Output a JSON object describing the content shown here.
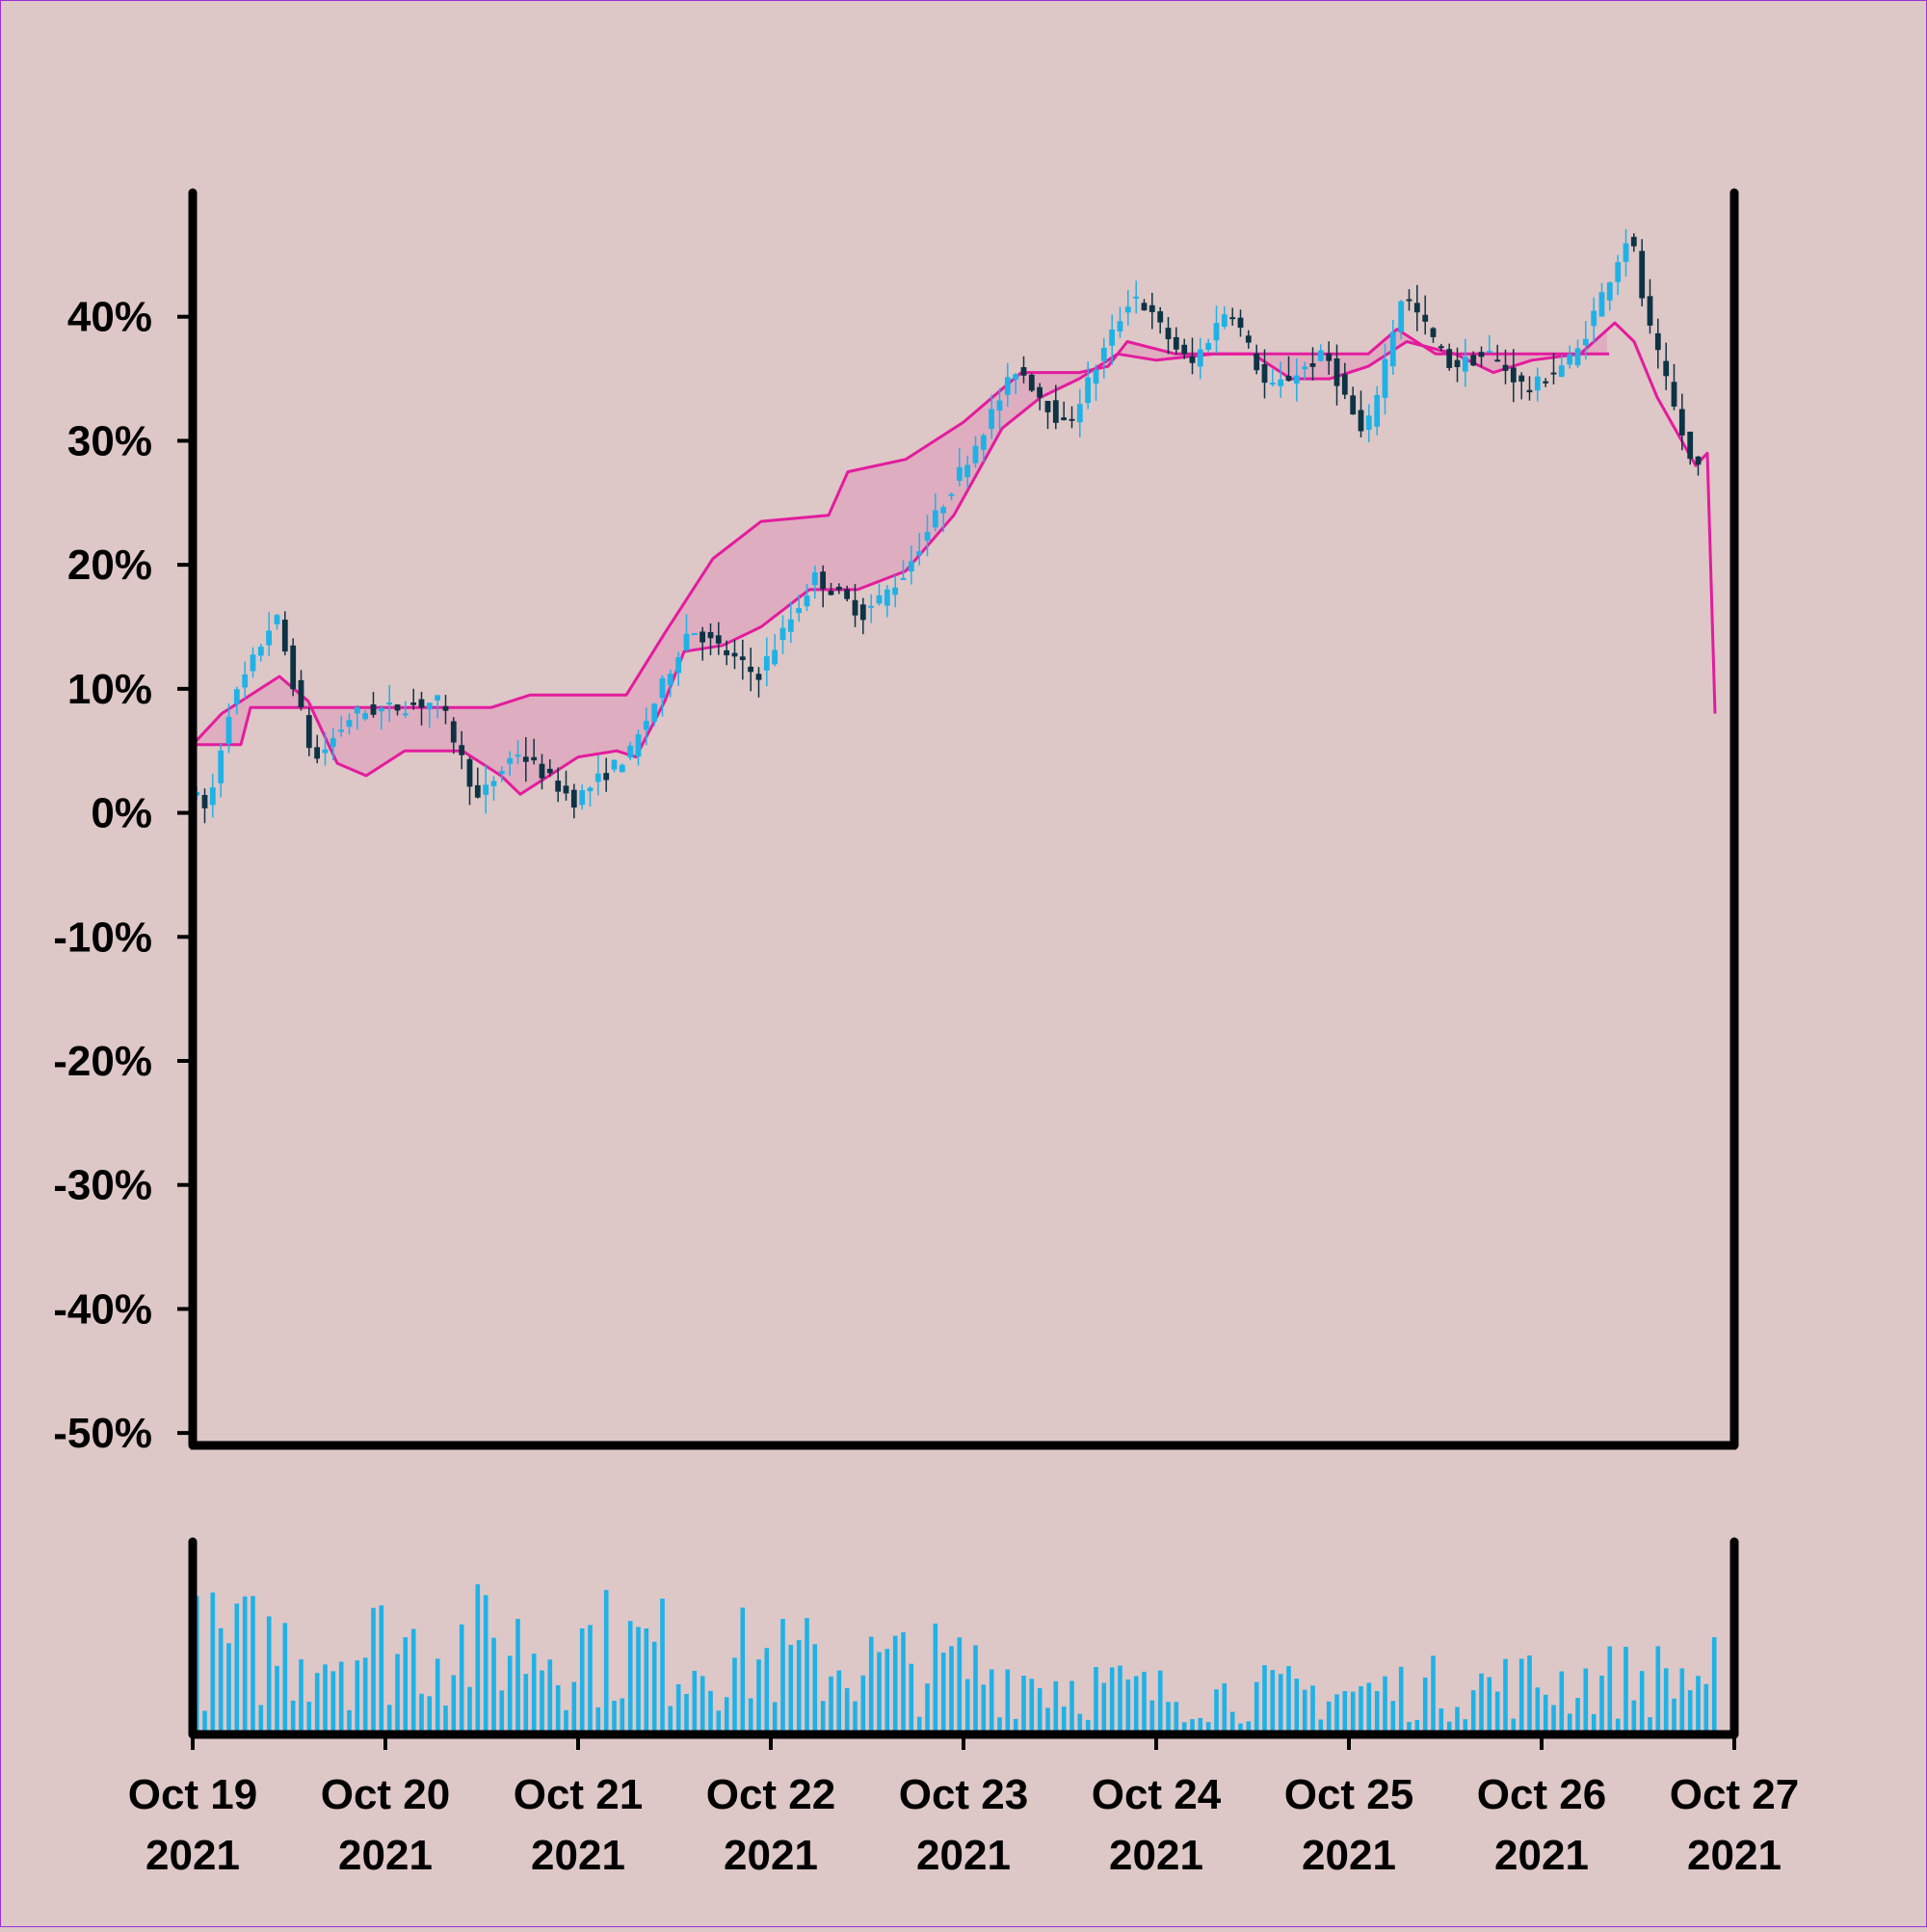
{
  "chart_data": {
    "type": "candlestick",
    "title": "",
    "xlabel": "",
    "ylabel": "",
    "y_format": "percent",
    "ylim": [
      -51,
      50
    ],
    "y_ticks": [
      40,
      30,
      20,
      10,
      0,
      -10,
      -20,
      -30,
      -40,
      -50
    ],
    "y_tick_labels": [
      "40%",
      "30%",
      "20%",
      "10%",
      "0%",
      "-10%",
      "-20%",
      "-30%",
      "-40%",
      "-50%"
    ],
    "x_ticks": [
      {
        "line1": "Oct 19",
        "line2": "2021"
      },
      {
        "line1": "Oct 20",
        "line2": "2021"
      },
      {
        "line1": "Oct 21",
        "line2": "2021"
      },
      {
        "line1": "Oct 22",
        "line2": "2021"
      },
      {
        "line1": "Oct 23",
        "line2": "2021"
      },
      {
        "line1": "Oct 24",
        "line2": "2021"
      },
      {
        "line1": "Oct 25",
        "line2": "2021"
      },
      {
        "line1": "Oct 26",
        "line2": "2021"
      },
      {
        "line1": "Oct 27",
        "line2": "2021"
      }
    ],
    "x_range_days": [
      0,
      8
    ],
    "grid": false,
    "legend": "none",
    "colors": {
      "background": "#dec7c7",
      "up": "#1fb2e6",
      "down": "#0d3344",
      "band_line": "#e31c9e",
      "band_fill": "#e06cae",
      "axis": "#000000",
      "volume": "#1fb2e6"
    },
    "price_path_keypoints": [
      [
        0.0,
        2
      ],
      [
        0.1,
        0
      ],
      [
        0.2,
        8
      ],
      [
        0.45,
        16
      ],
      [
        0.65,
        4
      ],
      [
        0.85,
        8
      ],
      [
        1.3,
        9
      ],
      [
        1.5,
        1
      ],
      [
        1.7,
        5
      ],
      [
        2.0,
        1
      ],
      [
        2.3,
        5
      ],
      [
        2.6,
        15
      ],
      [
        2.95,
        11
      ],
      [
        3.25,
        19
      ],
      [
        3.5,
        16
      ],
      [
        3.7,
        19
      ],
      [
        3.95,
        26
      ],
      [
        4.3,
        36
      ],
      [
        4.55,
        31
      ],
      [
        4.9,
        42
      ],
      [
        5.2,
        36
      ],
      [
        5.4,
        41
      ],
      [
        5.6,
        34
      ],
      [
        5.9,
        37
      ],
      [
        6.1,
        30
      ],
      [
        6.3,
        42
      ],
      [
        6.55,
        36
      ],
      [
        6.75,
        37
      ],
      [
        6.95,
        34
      ],
      [
        7.2,
        37
      ],
      [
        7.48,
        47
      ],
      [
        7.56,
        40
      ],
      [
        7.8,
        28
      ]
    ],
    "band_upper_keypoints": [
      [
        0.0,
        5.5
      ],
      [
        0.25,
        5.5
      ],
      [
        0.3,
        8.5
      ],
      [
        0.5,
        8.5
      ],
      [
        1.55,
        8.5
      ],
      [
        1.75,
        9.5
      ],
      [
        2.25,
        9.5
      ],
      [
        2.45,
        14.5
      ],
      [
        2.7,
        20.5
      ],
      [
        2.95,
        23.5
      ],
      [
        3.3,
        24
      ],
      [
        3.4,
        27.5
      ],
      [
        3.7,
        28.5
      ],
      [
        4.0,
        31.5
      ],
      [
        4.3,
        35.5
      ],
      [
        4.6,
        35.5
      ],
      [
        4.75,
        36
      ],
      [
        4.85,
        38
      ],
      [
        5.1,
        37
      ],
      [
        5.5,
        37
      ],
      [
        5.75,
        37
      ],
      [
        6.1,
        37
      ],
      [
        6.25,
        39
      ],
      [
        6.45,
        37
      ],
      [
        6.7,
        37
      ],
      [
        7.0,
        37
      ],
      [
        7.35,
        37
      ]
    ],
    "band_lower_keypoints": [
      [
        0.0,
        5.5
      ],
      [
        0.15,
        8
      ],
      [
        0.3,
        9.5
      ],
      [
        0.45,
        11
      ],
      [
        0.6,
        9
      ],
      [
        0.75,
        4
      ],
      [
        0.9,
        3
      ],
      [
        1.1,
        5
      ],
      [
        1.4,
        5
      ],
      [
        1.6,
        3
      ],
      [
        1.7,
        1.5
      ],
      [
        1.85,
        3
      ],
      [
        2.0,
        4.5
      ],
      [
        2.2,
        5
      ],
      [
        2.3,
        4.5
      ],
      [
        2.45,
        9
      ],
      [
        2.55,
        13
      ],
      [
        2.75,
        13.5
      ],
      [
        2.95,
        15
      ],
      [
        3.2,
        18
      ],
      [
        3.45,
        18
      ],
      [
        3.7,
        19.5
      ],
      [
        3.95,
        24
      ],
      [
        4.2,
        31
      ],
      [
        4.4,
        33.5
      ],
      [
        4.6,
        35
      ],
      [
        4.8,
        37
      ],
      [
        5.0,
        36.5
      ],
      [
        5.3,
        37
      ],
      [
        5.5,
        37
      ],
      [
        5.7,
        35
      ],
      [
        5.9,
        35
      ],
      [
        6.1,
        36
      ],
      [
        6.3,
        38
      ],
      [
        6.55,
        37
      ],
      [
        6.75,
        35.5
      ],
      [
        6.95,
        36.5
      ],
      [
        7.2,
        37
      ],
      [
        7.38,
        39.5
      ],
      [
        7.48,
        38
      ],
      [
        7.6,
        33.5
      ],
      [
        7.8,
        28
      ],
      [
        7.86,
        29
      ],
      [
        7.9,
        8
      ]
    ],
    "volume_level_keypoints": [
      [
        0.0,
        0.85
      ],
      [
        1.0,
        0.88
      ],
      [
        2.0,
        0.9
      ],
      [
        3.0,
        0.72
      ],
      [
        4.0,
        0.65
      ],
      [
        5.0,
        0.4
      ],
      [
        6.0,
        0.42
      ],
      [
        7.0,
        0.52
      ],
      [
        7.9,
        0.58
      ]
    ]
  }
}
